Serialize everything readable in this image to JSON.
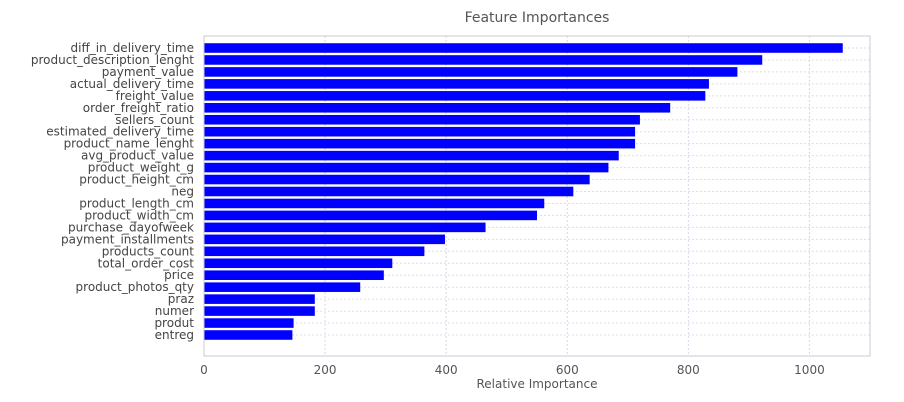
{
  "chart_data": {
    "type": "bar",
    "orientation": "horizontal",
    "title": "Feature Importances",
    "xlabel": "Relative Importance",
    "ylabel": "",
    "xlim": [
      0,
      1100
    ],
    "xticks": [
      0,
      200,
      400,
      600,
      800,
      1000
    ],
    "grid": true,
    "bar_color": "#0000ff",
    "categories": [
      "diff_in_delivery_time",
      "product_description_lenght",
      "payment_value",
      "actual_delivery_time",
      "freight_value",
      "order_freight_ratio",
      "sellers_count",
      "estimated_delivery_time",
      "product_name_lenght",
      "avg_product_value",
      "product_weight_g",
      "product_height_cm",
      "neg",
      "product_length_cm",
      "product_width_cm",
      "purchase_dayofweek",
      "payment_installments",
      "products_count",
      "total_order_cost",
      "price",
      "product_photos_qty",
      "praz",
      "numer",
      "produt",
      "entreg"
    ],
    "values": [
      1055,
      922,
      881,
      834,
      828,
      770,
      720,
      712,
      712,
      685,
      668,
      637,
      610,
      562,
      550,
      465,
      398,
      364,
      311,
      297,
      258,
      183,
      183,
      148,
      146
    ]
  }
}
